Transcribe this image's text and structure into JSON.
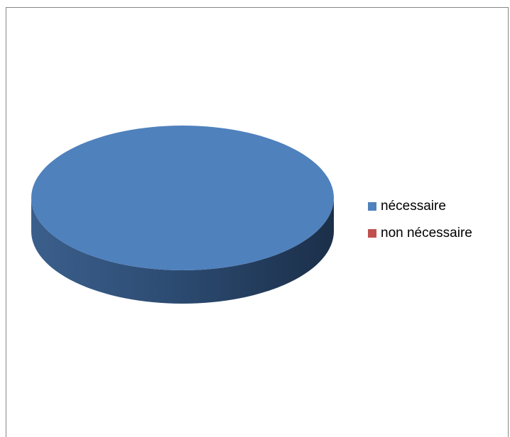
{
  "chart_data": {
    "type": "pie",
    "title": "",
    "categories": [
      "nécessaire",
      "non nécessaire"
    ],
    "values": [
      100,
      0
    ],
    "colors": [
      "#4F81BD",
      "#C0504D"
    ],
    "legend": "right",
    "style": "3d"
  }
}
